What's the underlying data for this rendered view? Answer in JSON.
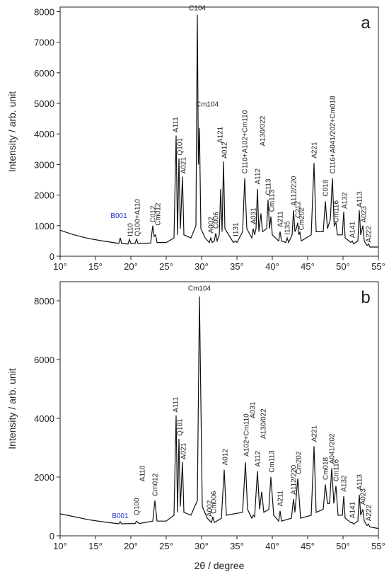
{
  "chart_data": [
    {
      "type": "line",
      "label": "a",
      "ylabel": "Intensity / arb. unit",
      "color": "#111111",
      "xlim": [
        10,
        55
      ],
      "ylim": [
        0,
        8150
      ],
      "xticks": [
        {
          "value": 10,
          "label": "10°"
        },
        {
          "value": 15,
          "label": "15°"
        },
        {
          "value": 20,
          "label": "20°"
        },
        {
          "value": 25,
          "label": "25°"
        },
        {
          "value": 30,
          "label": "30°"
        },
        {
          "value": 35,
          "label": "35°"
        },
        {
          "value": 40,
          "label": "40°"
        },
        {
          "value": 45,
          "label": "45°"
        },
        {
          "value": 50,
          "label": "50°"
        },
        {
          "value": 55,
          "label": "55°"
        }
      ],
      "yticks": [
        0,
        1000,
        2000,
        3000,
        4000,
        5000,
        6000,
        7000,
        8000
      ],
      "series": [
        {
          "x": [
            10,
            12,
            14,
            16,
            18,
            18.3,
            18.5,
            18.7,
            19.6,
            19.8,
            20.0,
            20.6,
            20.8,
            21.0,
            22.8,
            23.1,
            23.3,
            23.5,
            23.7,
            25.0,
            26.1,
            26.4,
            26.6,
            26.8,
            27.0,
            27.3,
            27.5,
            28.5,
            29.2,
            29.4,
            29.55,
            29.7,
            29.9,
            30.5,
            31.1,
            31.3,
            31.5,
            31.8,
            32.0,
            32.2,
            32.5,
            32.7,
            32.9,
            33.1,
            33.3,
            34.5,
            34.8,
            35.0,
            35.8,
            36.1,
            36.4,
            37.1,
            37.3,
            37.5,
            37.7,
            37.9,
            38.1,
            38.4,
            38.6,
            39.2,
            39.4,
            39.6,
            39.8,
            40.0,
            40.9,
            41.1,
            41.3,
            41.9,
            42.1,
            42.3,
            42.8,
            43.0,
            43.2,
            43.4,
            43.6,
            43.75,
            43.9,
            44.1,
            45.5,
            45.9,
            46.2,
            47.2,
            47.5,
            47.8,
            48.2,
            48.5,
            48.75,
            49.0,
            49.2,
            49.9,
            50.1,
            50.3,
            51.1,
            51.3,
            51.5,
            52.1,
            52.3,
            52.5,
            52.8,
            53.0,
            53.4,
            53.6,
            53.8,
            55
          ],
          "values": [
            850,
            700,
            580,
            500,
            430,
            420,
            600,
            420,
            400,
            550,
            420,
            420,
            560,
            420,
            430,
            1000,
            650,
            700,
            450,
            450,
            600,
            3950,
            700,
            3200,
            900,
            2600,
            700,
            600,
            1000,
            7900,
            3000,
            4200,
            900,
            600,
            450,
            600,
            450,
            500,
            750,
            500,
            700,
            2200,
            800,
            3100,
            900,
            450,
            500,
            450,
            800,
            2550,
            900,
            600,
            900,
            700,
            900,
            2200,
            800,
            1400,
            800,
            900,
            1850,
            900,
            1300,
            700,
            500,
            800,
            500,
            450,
            600,
            450,
            700,
            1500,
            800,
            900,
            1100,
            700,
            800,
            500,
            700,
            3050,
            800,
            800,
            1800,
            900,
            1200,
            2550,
            1000,
            1100,
            700,
            700,
            1450,
            600,
            450,
            500,
            400,
            500,
            1500,
            700,
            1000,
            500,
            350,
            400,
            300,
            300
          ]
        }
      ],
      "annotations": [
        {
          "text": "B001",
          "x": 18.3,
          "y": 1250,
          "orientation": "horizontal",
          "color": "#2233cc"
        },
        {
          "text": "I110",
          "x": 19.9,
          "y": 650
        },
        {
          "text": "Q100+A110",
          "x": 20.9,
          "y": 650
        },
        {
          "text": "C012",
          "x": 23.1,
          "y": 1100
        },
        {
          "text": "Cm012",
          "x": 23.8,
          "y": 1000
        },
        {
          "text": "A111",
          "x": 26.3,
          "y": 4050
        },
        {
          "text": "Q101",
          "x": 26.9,
          "y": 3300
        },
        {
          "text": "A021",
          "x": 27.4,
          "y": 2700
        },
        {
          "text": "C104",
          "x": 29.4,
          "y": 8050,
          "orientation": "horizontal"
        },
        {
          "text": "Cm104",
          "x": 30.8,
          "y": 4900,
          "orientation": "horizontal"
        },
        {
          "text": "A002",
          "x": 31.3,
          "y": 750
        },
        {
          "text": "C006",
          "x": 32.0,
          "y": 900
        },
        {
          "text": "A121",
          "x": 32.6,
          "y": 3700
        },
        {
          "text": "A012",
          "x": 33.2,
          "y": 3200
        },
        {
          "text": "I131",
          "x": 34.8,
          "y": 650
        },
        {
          "text": "C110+A102+Cm110",
          "x": 36.1,
          "y": 2700
        },
        {
          "text": "A031",
          "x": 37.3,
          "y": 1050
        },
        {
          "text": "A112",
          "x": 37.9,
          "y": 2350
        },
        {
          "text": "A130/022",
          "x": 38.6,
          "y": 3600
        },
        {
          "text": "C113",
          "x": 39.4,
          "y": 2000
        },
        {
          "text": "Cm113",
          "x": 39.9,
          "y": 1450
        },
        {
          "text": "A211",
          "x": 41.1,
          "y": 950
        },
        {
          "text": "I135",
          "x": 42.1,
          "y": 700
        },
        {
          "text": "A112/220",
          "x": 43.0,
          "y": 1650
        },
        {
          "text": "C212",
          "x": 43.6,
          "y": 1250
        },
        {
          "text": "Cm202",
          "x": 44.1,
          "y": 850
        },
        {
          "text": "A221",
          "x": 45.9,
          "y": 3200
        },
        {
          "text": "C018",
          "x": 47.5,
          "y": 1950
        },
        {
          "text": "C116+A041/202+Cm018",
          "x": 48.5,
          "y": 2700
        },
        {
          "text": "Cm116",
          "x": 49.0,
          "y": 1100
        },
        {
          "text": "A132",
          "x": 50.2,
          "y": 1550
        },
        {
          "text": "A141",
          "x": 51.3,
          "y": 600
        },
        {
          "text": "A113",
          "x": 52.3,
          "y": 1600
        },
        {
          "text": "A023",
          "x": 52.9,
          "y": 1100
        },
        {
          "text": "A222",
          "x": 53.6,
          "y": 450
        }
      ]
    },
    {
      "type": "line",
      "label": "b",
      "ylabel": "Intensity / arb. unit",
      "xlabel": "2θ / degree",
      "color": "#111111",
      "xlim": [
        10,
        55
      ],
      "ylim": [
        0,
        8650
      ],
      "xticks": [
        {
          "value": 10,
          "label": "10°"
        },
        {
          "value": 15,
          "label": "15°"
        },
        {
          "value": 20,
          "label": "20°"
        },
        {
          "value": 25,
          "label": "25°"
        },
        {
          "value": 30,
          "label": "30°"
        },
        {
          "value": 35,
          "label": "35°"
        },
        {
          "value": 40,
          "label": "40°"
        },
        {
          "value": 45,
          "label": "45°"
        },
        {
          "value": 50,
          "label": "50°"
        },
        {
          "value": 55,
          "label": "55°"
        }
      ],
      "yticks": [
        0,
        2000,
        4000,
        6000,
        8000
      ],
      "series": [
        {
          "x": [
            10,
            12,
            14,
            16,
            18,
            18.3,
            18.5,
            18.7,
            20.6,
            20.8,
            21.0,
            21.2,
            23.1,
            23.4,
            23.7,
            25.0,
            26.1,
            26.4,
            26.6,
            26.8,
            27.0,
            27.3,
            27.5,
            28.5,
            29.4,
            29.7,
            30.1,
            30.8,
            31.2,
            31.4,
            31.6,
            31.8,
            32.8,
            33.2,
            33.5,
            35.8,
            36.2,
            36.5,
            37.1,
            37.3,
            37.5,
            37.9,
            38.2,
            38.5,
            38.8,
            39.5,
            39.8,
            40.2,
            40.9,
            41.1,
            41.3,
            42.7,
            43.0,
            43.2,
            43.6,
            44.0,
            45.5,
            45.9,
            46.2,
            47.2,
            47.5,
            47.8,
            48.1,
            48.4,
            48.7,
            49.0,
            49.3,
            49.9,
            50.1,
            50.3,
            51.1,
            51.3,
            51.5,
            52.1,
            52.3,
            52.5,
            52.8,
            53.0,
            53.4,
            53.6,
            53.8,
            55
          ],
          "values": [
            750,
            650,
            550,
            480,
            420,
            410,
            480,
            410,
            420,
            500,
            450,
            420,
            500,
            1200,
            500,
            500,
            700,
            4100,
            800,
            3300,
            1000,
            2500,
            800,
            700,
            1200,
            8150,
            1000,
            600,
            500,
            450,
            650,
            450,
            600,
            2250,
            700,
            800,
            2500,
            900,
            600,
            700,
            650,
            2200,
            900,
            1500,
            800,
            900,
            2000,
            700,
            500,
            850,
            500,
            600,
            1250,
            800,
            1950,
            600,
            700,
            3050,
            800,
            900,
            1750,
            1100,
            1100,
            2300,
            1100,
            1700,
            700,
            700,
            1350,
            600,
            450,
            450,
            400,
            500,
            1400,
            700,
            900,
            500,
            350,
            400,
            300,
            250
          ]
        }
      ],
      "annotations": [
        {
          "text": "B001",
          "x": 18.5,
          "y": 600,
          "orientation": "horizontal",
          "color": "#2233cc"
        },
        {
          "text": "Q100",
          "x": 20.8,
          "y": 700
        },
        {
          "text": "A110",
          "x": 21.6,
          "y": 1850
        },
        {
          "text": "Cm012",
          "x": 23.4,
          "y": 1350
        },
        {
          "text": "A111",
          "x": 26.3,
          "y": 4200
        },
        {
          "text": "Q101",
          "x": 26.9,
          "y": 3400
        },
        {
          "text": "A021",
          "x": 27.4,
          "y": 2600
        },
        {
          "text": "Cm104",
          "x": 29.7,
          "y": 8350,
          "orientation": "horizontal"
        },
        {
          "text": "A002",
          "x": 31.1,
          "y": 650
        },
        {
          "text": "Cm006",
          "x": 31.7,
          "y": 750
        },
        {
          "text": "A012",
          "x": 33.3,
          "y": 2400
        },
        {
          "text": "A102+Cm110",
          "x": 36.3,
          "y": 2700
        },
        {
          "text": "A031",
          "x": 37.2,
          "y": 4000
        },
        {
          "text": "A112",
          "x": 37.9,
          "y": 2350
        },
        {
          "text": "A130/022",
          "x": 38.7,
          "y": 3300
        },
        {
          "text": "Cm113",
          "x": 39.9,
          "y": 2150
        },
        {
          "text": "A211",
          "x": 41.1,
          "y": 1000
        },
        {
          "text": "A112/220",
          "x": 43.0,
          "y": 1400
        },
        {
          "text": "Cm202",
          "x": 43.7,
          "y": 2100
        },
        {
          "text": "A221",
          "x": 45.9,
          "y": 3200
        },
        {
          "text": "Cm018",
          "x": 47.5,
          "y": 1900
        },
        {
          "text": "A041/202",
          "x": 48.4,
          "y": 2450
        },
        {
          "text": "Cm116",
          "x": 49.0,
          "y": 1850
        },
        {
          "text": "A132",
          "x": 50.1,
          "y": 1500
        },
        {
          "text": "A141",
          "x": 51.3,
          "y": 600
        },
        {
          "text": "A113",
          "x": 52.3,
          "y": 1550
        },
        {
          "text": "A023",
          "x": 52.8,
          "y": 1050
        },
        {
          "text": "A222",
          "x": 53.6,
          "y": 500
        }
      ]
    }
  ]
}
